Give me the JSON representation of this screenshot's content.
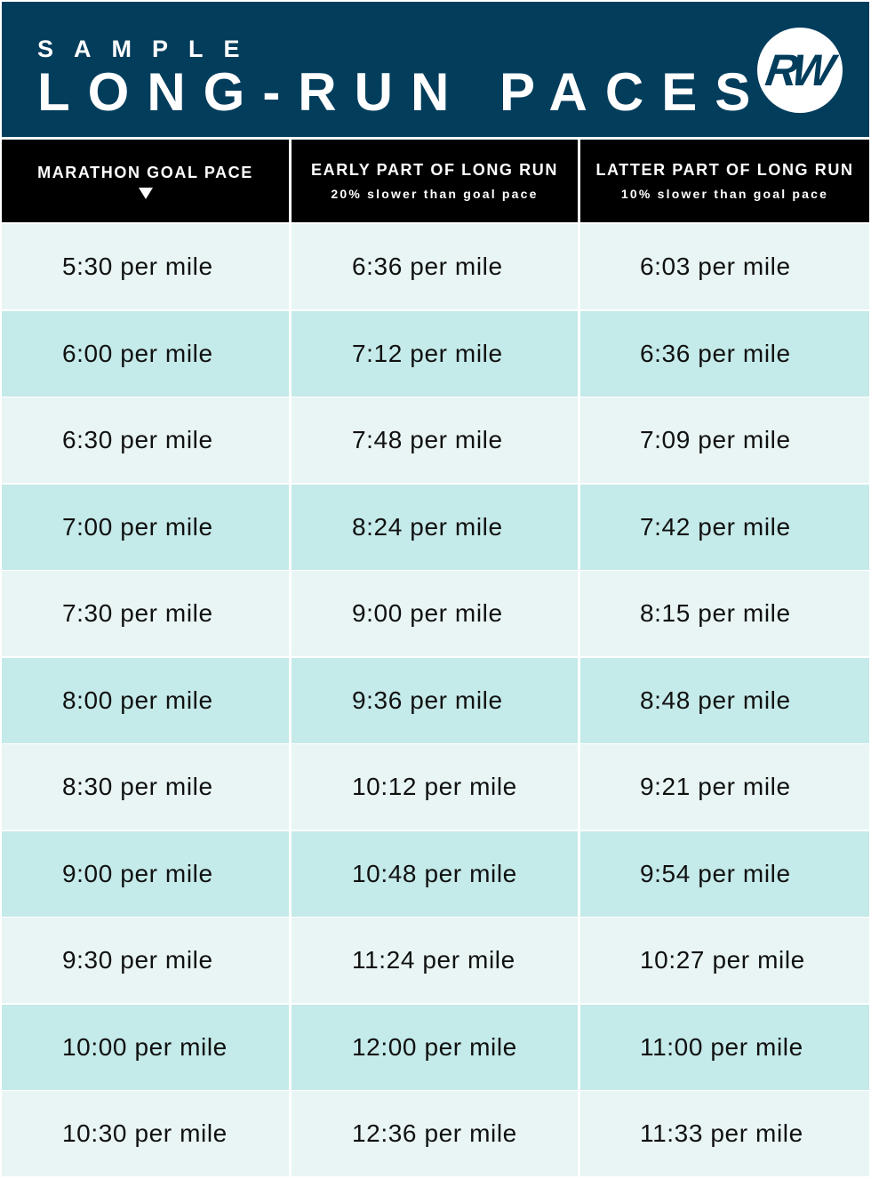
{
  "banner": {
    "kicker": "SAMPLE",
    "headline": "LONG-RUN PACES",
    "logo_text": "RW"
  },
  "colors": {
    "banner_bg": "#023d5c",
    "header_bg": "#000000",
    "row_light": "#e8f5f4",
    "row_dark": "#c4eae9"
  },
  "table": {
    "columns": [
      {
        "title": "MARATHON GOAL PACE",
        "subtitle": "",
        "icon": "triangle-down-icon"
      },
      {
        "title": "EARLY PART OF LONG RUN",
        "subtitle": "20% slower than goal pace"
      },
      {
        "title": "LATTER PART OF LONG RUN",
        "subtitle": "10% slower than goal pace"
      }
    ],
    "rows": [
      [
        "5:30 per mile",
        "6:36 per mile",
        "6:03 per mile"
      ],
      [
        "6:00 per mile",
        "7:12 per mile",
        "6:36 per mile"
      ],
      [
        "6:30 per mile",
        "7:48 per mile",
        "7:09 per mile"
      ],
      [
        "7:00 per mile",
        "8:24 per mile",
        "7:42 per mile"
      ],
      [
        "7:30 per mile",
        "9:00 per mile",
        "8:15 per mile"
      ],
      [
        "8:00 per mile",
        "9:36 per mile",
        "8:48 per mile"
      ],
      [
        "8:30 per mile",
        "10:12 per mile",
        "9:21 per mile"
      ],
      [
        "9:00 per mile",
        "10:48 per mile",
        "9:54 per mile"
      ],
      [
        "9:30 per mile",
        "11:24 per mile",
        "10:27 per mile"
      ],
      [
        "10:00 per mile",
        "12:00 per mile",
        "11:00 per mile"
      ],
      [
        "10:30 per mile",
        "12:36 per mile",
        "11:33 per mile"
      ]
    ]
  }
}
